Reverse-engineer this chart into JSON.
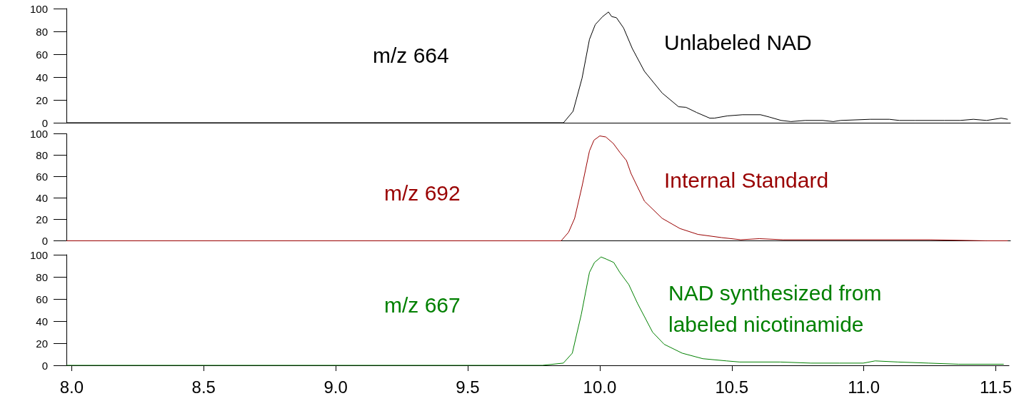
{
  "chart_data": [
    {
      "type": "line",
      "xlim": [
        7.98,
        11.55
      ],
      "ylim": [
        0,
        100
      ],
      "yticks": [
        0,
        20,
        40,
        60,
        80,
        100
      ],
      "tick_labels": "y",
      "annotations": [
        "m/z 664",
        "Unlabeled NAD"
      ],
      "series": [
        {
          "color": "#000000",
          "x": [
            7.98,
            9.86,
            9.896,
            9.93,
            9.958,
            9.98,
            10.008,
            10.03,
            10.042,
            10.06,
            10.087,
            10.12,
            10.166,
            10.233,
            10.295,
            10.323,
            10.363,
            10.413,
            10.43,
            10.48,
            10.537,
            10.605,
            10.638,
            10.683,
            10.72,
            10.773,
            10.84,
            10.88,
            10.908,
            11.02,
            11.092,
            11.13,
            11.19,
            11.3,
            11.36,
            11.41,
            11.46,
            11.515,
            11.54
          ],
          "values": [
            0,
            0,
            10,
            39,
            73,
            86,
            93,
            97,
            93,
            92,
            83,
            65,
            45,
            26,
            14,
            13.5,
            9,
            4,
            4,
            6,
            7,
            7,
            5,
            2,
            1,
            2,
            2,
            1,
            2,
            3,
            3,
            2,
            2,
            2,
            2,
            3,
            2,
            4,
            3
          ]
        }
      ]
    },
    {
      "type": "line",
      "xlim": [
        7.98,
        11.55
      ],
      "ylim": [
        0,
        100
      ],
      "yticks": [
        0,
        20,
        40,
        60,
        80,
        100
      ],
      "tick_labels": "y",
      "annotations": [
        "m/z 692",
        "Internal Standard"
      ],
      "series": [
        {
          "color": "#990000",
          "x": [
            7.98,
            9.851,
            9.879,
            9.902,
            9.93,
            9.958,
            9.975,
            9.997,
            10.02,
            10.048,
            10.075,
            10.098,
            10.115,
            10.166,
            10.233,
            10.3,
            10.368,
            10.458,
            10.53,
            10.6,
            10.69,
            10.91,
            11.245,
            11.46,
            11.54
          ],
          "values": [
            0,
            0,
            8,
            21,
            51,
            84,
            94,
            98,
            97,
            91,
            82,
            75,
            63,
            37,
            21,
            11.5,
            6,
            3,
            1,
            2,
            1,
            1,
            1,
            0,
            0
          ]
        }
      ]
    },
    {
      "type": "line",
      "xlim": [
        7.98,
        11.55
      ],
      "ylim": [
        0,
        100
      ],
      "yticks": [
        0,
        20,
        40,
        60,
        80,
        100
      ],
      "xticks": [
        {
          "value": 8,
          "label": "8.0"
        },
        8.5,
        {
          "value": 9,
          "label": "9.0"
        },
        9.5,
        {
          "value": 10,
          "label": "10.0"
        },
        10.5,
        {
          "value": 11,
          "label": "11.0"
        },
        11.5
      ],
      "annotations": [
        "m/z 667",
        "NAD synthesized from labeled nicotinamide"
      ],
      "series": [
        {
          "color": "#008000",
          "x": [
            7.98,
            9.783,
            9.862,
            9.896,
            9.93,
            9.961,
            9.98,
            10.005,
            10.025,
            10.053,
            10.076,
            10.11,
            10.143,
            10.2,
            10.244,
            10.312,
            10.39,
            10.48,
            10.53,
            10.683,
            10.8,
            10.908,
            10.998,
            11.043,
            11.13,
            11.245,
            11.36,
            11.53
          ],
          "values": [
            0,
            0,
            2,
            11,
            46,
            84,
            93,
            98,
            96,
            93,
            84,
            73,
            56,
            30,
            19,
            11,
            6,
            4,
            3,
            3,
            2,
            2,
            2,
            4,
            3,
            2,
            1,
            1
          ]
        }
      ]
    }
  ]
}
